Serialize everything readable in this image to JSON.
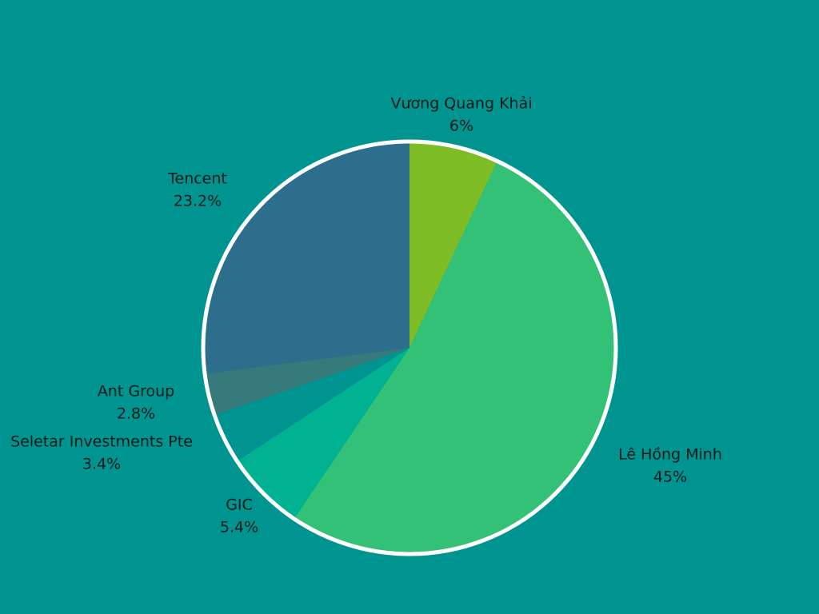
{
  "background": "#009490",
  "chart_data": {
    "type": "pie",
    "title": "",
    "start_angle_deg": 0,
    "direction": "clockwise",
    "border_color": "#ffffff",
    "slices": [
      {
        "label": "Vương Quang Khải",
        "value": 6,
        "display": "6%",
        "color": "#7ebd26"
      },
      {
        "label": "Lê Hồng Minh",
        "value": 45,
        "display": "45%",
        "color": "#33c177"
      },
      {
        "label": "GIC",
        "value": 5.4,
        "display": "5.4%",
        "color": "#00b291"
      },
      {
        "label": "Seletar Investments Pte",
        "value": 3.4,
        "display": "3.4%",
        "color": "#009490"
      },
      {
        "label": "Ant Group",
        "value": 2.8,
        "display": "2.8%",
        "color": "#367a7b"
      },
      {
        "label": "Tencent",
        "value": 23.2,
        "display": "23.2%",
        "color": "#2d6e8d"
      }
    ]
  }
}
